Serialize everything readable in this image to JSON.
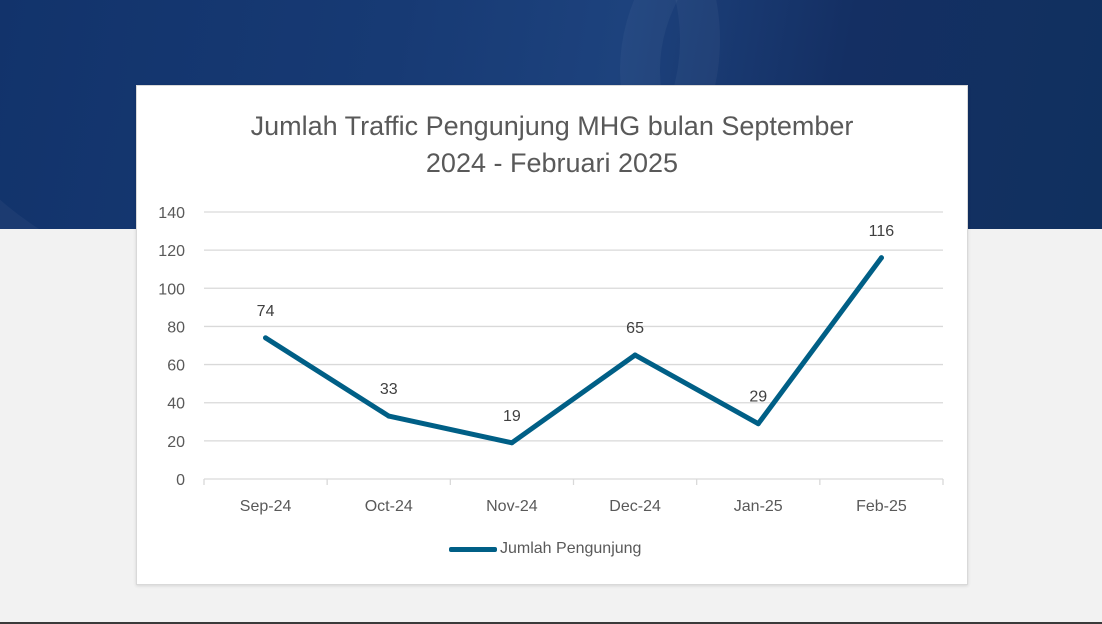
{
  "chart_data": {
    "type": "line",
    "title_lines": [
      "Jumlah Traffic Pengunjung MHG bulan September",
      "2024 - Februari 2025"
    ],
    "categories": [
      "Sep-24",
      "Oct-24",
      "Nov-24",
      "Dec-24",
      "Jan-25",
      "Feb-25"
    ],
    "series": [
      {
        "name": "Jumlah Pengunjung",
        "values": [
          74,
          33,
          19,
          65,
          29,
          116
        ],
        "color": "#005f86"
      }
    ],
    "y_ticks": [
      "0",
      "20",
      "40",
      "60",
      "80",
      "100",
      "120",
      "140"
    ],
    "ylim": [
      0,
      140
    ],
    "grid": true,
    "legend_position": "bottom",
    "data_labels": true
  },
  "colors": {
    "banner": "#173a74",
    "page_background": "#f2f2f2",
    "card_background": "#ffffff",
    "gridline": "#d9d9d9",
    "text": "#595959"
  }
}
